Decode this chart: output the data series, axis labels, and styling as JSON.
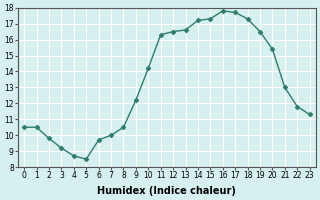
{
  "x": [
    0,
    1,
    2,
    3,
    4,
    5,
    6,
    7,
    8,
    9,
    10,
    11,
    12,
    13,
    14,
    15,
    16,
    17,
    18,
    19,
    20,
    21,
    22,
    23
  ],
  "y": [
    10.5,
    10.5,
    9.8,
    9.2,
    8.7,
    8.5,
    9.7,
    10.0,
    10.5,
    12.2,
    14.2,
    16.3,
    16.5,
    16.6,
    17.2,
    17.3,
    17.8,
    17.7,
    17.3,
    16.5,
    15.4,
    13.0,
    11.8,
    11.3
  ],
  "line_color": "#2e7d6b",
  "marker": "D",
  "marker_size": 2.5,
  "bg_color": "#d6f0ef",
  "grid_color": "#ffffff",
  "xlabel": "Humidex (Indice chaleur)",
  "ylim": [
    8,
    18
  ],
  "xlim_min": -0.5,
  "xlim_max": 23.5,
  "yticks": [
    8,
    9,
    10,
    11,
    12,
    13,
    14,
    15,
    16,
    17,
    18
  ],
  "xticks": [
    0,
    1,
    2,
    3,
    4,
    5,
    6,
    7,
    8,
    9,
    10,
    11,
    12,
    13,
    14,
    15,
    16,
    17,
    18,
    19,
    20,
    21,
    22,
    23
  ],
  "tick_fontsize": 5.5,
  "xlabel_fontsize": 7,
  "xlabel_fontweight": "bold",
  "linewidth": 1.0
}
